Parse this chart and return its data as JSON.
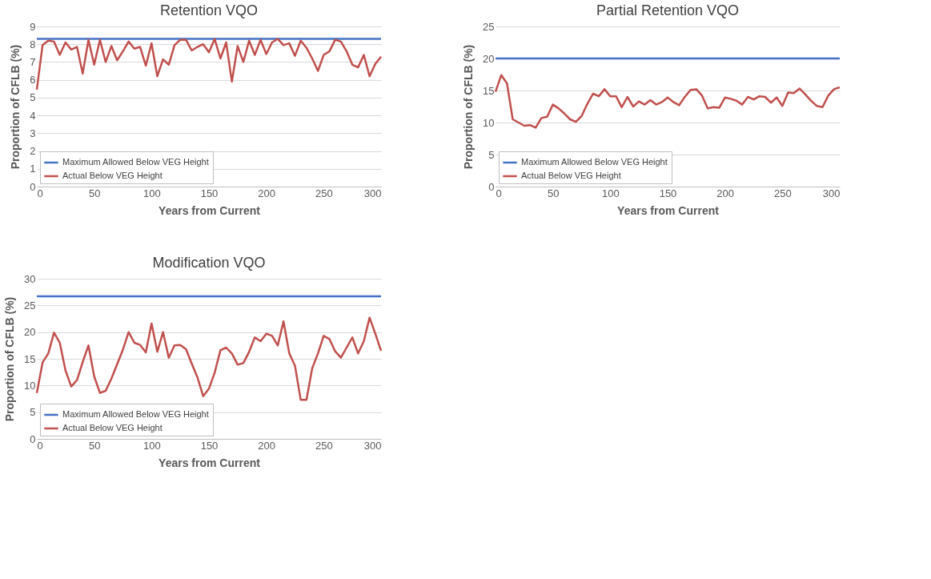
{
  "chart_data": [
    {
      "type": "line",
      "title": "Retention VQO",
      "xlabel": "Years from Current",
      "ylabel": "Proportion of CFLB (%)",
      "xlim": [
        0,
        300
      ],
      "xticks": [
        0,
        50,
        100,
        150,
        200,
        250,
        300
      ],
      "ylim": [
        0,
        9
      ],
      "yticks": [
        0,
        1,
        2,
        3,
        4,
        5,
        6,
        7,
        8,
        9
      ],
      "grid": "y",
      "legend": "bottom left",
      "marker": "none",
      "line_style": "solid",
      "series": [
        {
          "name": "Maximum Allowed Below VEG Height",
          "color": "#4472c4",
          "x": [
            0,
            300
          ],
          "values": [
            8.3,
            8.3
          ]
        },
        {
          "name": "Actual Below VEG Height",
          "color": "#c0504d",
          "x": [
            0,
            5,
            10,
            15,
            20,
            25,
            30,
            35,
            40,
            45,
            50,
            55,
            60,
            65,
            70,
            75,
            80,
            85,
            90,
            95,
            100,
            105,
            110,
            115,
            120,
            125,
            130,
            135,
            140,
            145,
            150,
            155,
            160,
            165,
            170,
            175,
            180,
            185,
            190,
            195,
            200,
            205,
            210,
            215,
            220,
            225,
            230,
            235,
            240,
            245,
            250,
            255,
            260,
            265,
            270,
            275,
            280,
            285,
            290,
            295,
            300
          ],
          "values": [
            5.45,
            7.95,
            8.2,
            8.15,
            7.4,
            8.1,
            7.7,
            7.85,
            6.35,
            8.25,
            6.85,
            8.25,
            7.0,
            7.9,
            7.1,
            7.6,
            8.15,
            7.75,
            7.85,
            6.8,
            8.05,
            6.2,
            7.15,
            6.85,
            7.95,
            8.25,
            8.25,
            7.65,
            7.85,
            8.0,
            7.55,
            8.3,
            7.2,
            8.1,
            5.9,
            7.9,
            7.0,
            8.2,
            7.4,
            8.25,
            7.45,
            8.1,
            8.3,
            7.95,
            8.05,
            7.35,
            8.2,
            7.8,
            7.2,
            6.5,
            7.4,
            7.6,
            8.25,
            8.15,
            7.6,
            6.85,
            6.7,
            7.4,
            6.2,
            6.9,
            7.3
          ]
        }
      ]
    },
    {
      "type": "line",
      "title": "Partial Retention VQO",
      "xlabel": "Years from Current",
      "ylabel": "Proportion of CFLB (%)",
      "xlim": [
        0,
        300
      ],
      "xticks": [
        0,
        50,
        100,
        150,
        200,
        250,
        300
      ],
      "ylim": [
        0,
        25
      ],
      "yticks": [
        0,
        5,
        10,
        15,
        20,
        25
      ],
      "grid": "y",
      "legend": "bottom left",
      "marker": "none",
      "line_style": "solid",
      "series": [
        {
          "name": "Maximum Allowed Below VEG Height",
          "color": "#4472c4",
          "x": [
            0,
            300
          ],
          "values": [
            20,
            20
          ]
        },
        {
          "name": "Actual Below VEG Height",
          "color": "#c0504d",
          "x": [
            0,
            5,
            10,
            15,
            20,
            25,
            30,
            35,
            40,
            45,
            50,
            55,
            60,
            65,
            70,
            75,
            80,
            85,
            90,
            95,
            100,
            105,
            110,
            115,
            120,
            125,
            130,
            135,
            140,
            145,
            150,
            155,
            160,
            165,
            170,
            175,
            180,
            185,
            190,
            195,
            200,
            205,
            210,
            215,
            220,
            225,
            230,
            235,
            240,
            245,
            250,
            255,
            260,
            265,
            270,
            275,
            280,
            285,
            290,
            295,
            300
          ],
          "values": [
            14.8,
            17.4,
            16.1,
            10.5,
            10.0,
            9.5,
            9.6,
            9.2,
            10.7,
            10.9,
            12.8,
            12.2,
            11.4,
            10.5,
            10.1,
            11.0,
            12.9,
            14.5,
            14.1,
            15.2,
            14.1,
            14.1,
            12.4,
            14.0,
            12.5,
            13.3,
            12.8,
            13.5,
            12.8,
            13.2,
            13.9,
            13.2,
            12.7,
            14.0,
            15.1,
            15.2,
            14.2,
            12.2,
            12.4,
            12.3,
            13.9,
            13.7,
            13.4,
            12.8,
            14.0,
            13.6,
            14.1,
            14.0,
            13.1,
            13.9,
            12.6,
            14.7,
            14.6,
            15.3,
            14.4,
            13.4,
            12.6,
            12.4,
            14.2,
            15.2,
            15.5
          ]
        }
      ]
    },
    {
      "type": "line",
      "title": "Modification VQO",
      "xlabel": "Years from Current",
      "ylabel": "Proportion of CFLB (%)",
      "xlim": [
        0,
        300
      ],
      "xticks": [
        0,
        50,
        100,
        150,
        200,
        250,
        300
      ],
      "ylim": [
        0,
        30
      ],
      "yticks": [
        0,
        5,
        10,
        15,
        20,
        25,
        30
      ],
      "grid": "y",
      "legend": "bottom left",
      "marker": "none",
      "line_style": "solid",
      "series": [
        {
          "name": "Maximum Allowed Below VEG Height",
          "color": "#4472c4",
          "x": [
            0,
            300
          ],
          "values": [
            26.7,
            26.7
          ]
        },
        {
          "name": "Actual Below VEG Height",
          "color": "#c0504d",
          "x": [
            0,
            5,
            10,
            15,
            20,
            25,
            30,
            35,
            40,
            45,
            50,
            55,
            60,
            65,
            70,
            75,
            80,
            85,
            90,
            95,
            100,
            105,
            110,
            115,
            120,
            125,
            130,
            135,
            140,
            145,
            150,
            155,
            160,
            165,
            170,
            175,
            180,
            185,
            190,
            195,
            200,
            205,
            210,
            215,
            220,
            225,
            230,
            235,
            240,
            245,
            250,
            255,
            260,
            265,
            270,
            275,
            280,
            285,
            290,
            295,
            300
          ],
          "values": [
            8.6,
            14.3,
            16.0,
            19.9,
            18.0,
            12.8,
            9.8,
            11.0,
            14.4,
            17.5,
            11.7,
            8.6,
            9.0,
            11.3,
            14.0,
            16.7,
            20.0,
            18.0,
            17.6,
            16.2,
            21.6,
            16.3,
            20.0,
            15.2,
            17.5,
            17.6,
            16.8,
            14.1,
            11.5,
            8.0,
            9.4,
            12.4,
            16.6,
            17.1,
            16.0,
            13.9,
            14.2,
            16.3,
            19.0,
            18.3,
            19.7,
            19.3,
            17.5,
            22.0,
            16.0,
            13.7,
            7.3,
            7.3,
            13.2,
            16.0,
            19.3,
            18.7,
            16.4,
            15.2,
            17.1,
            19.0,
            16.0,
            18.3,
            22.7,
            19.7,
            16.5
          ]
        }
      ]
    }
  ]
}
